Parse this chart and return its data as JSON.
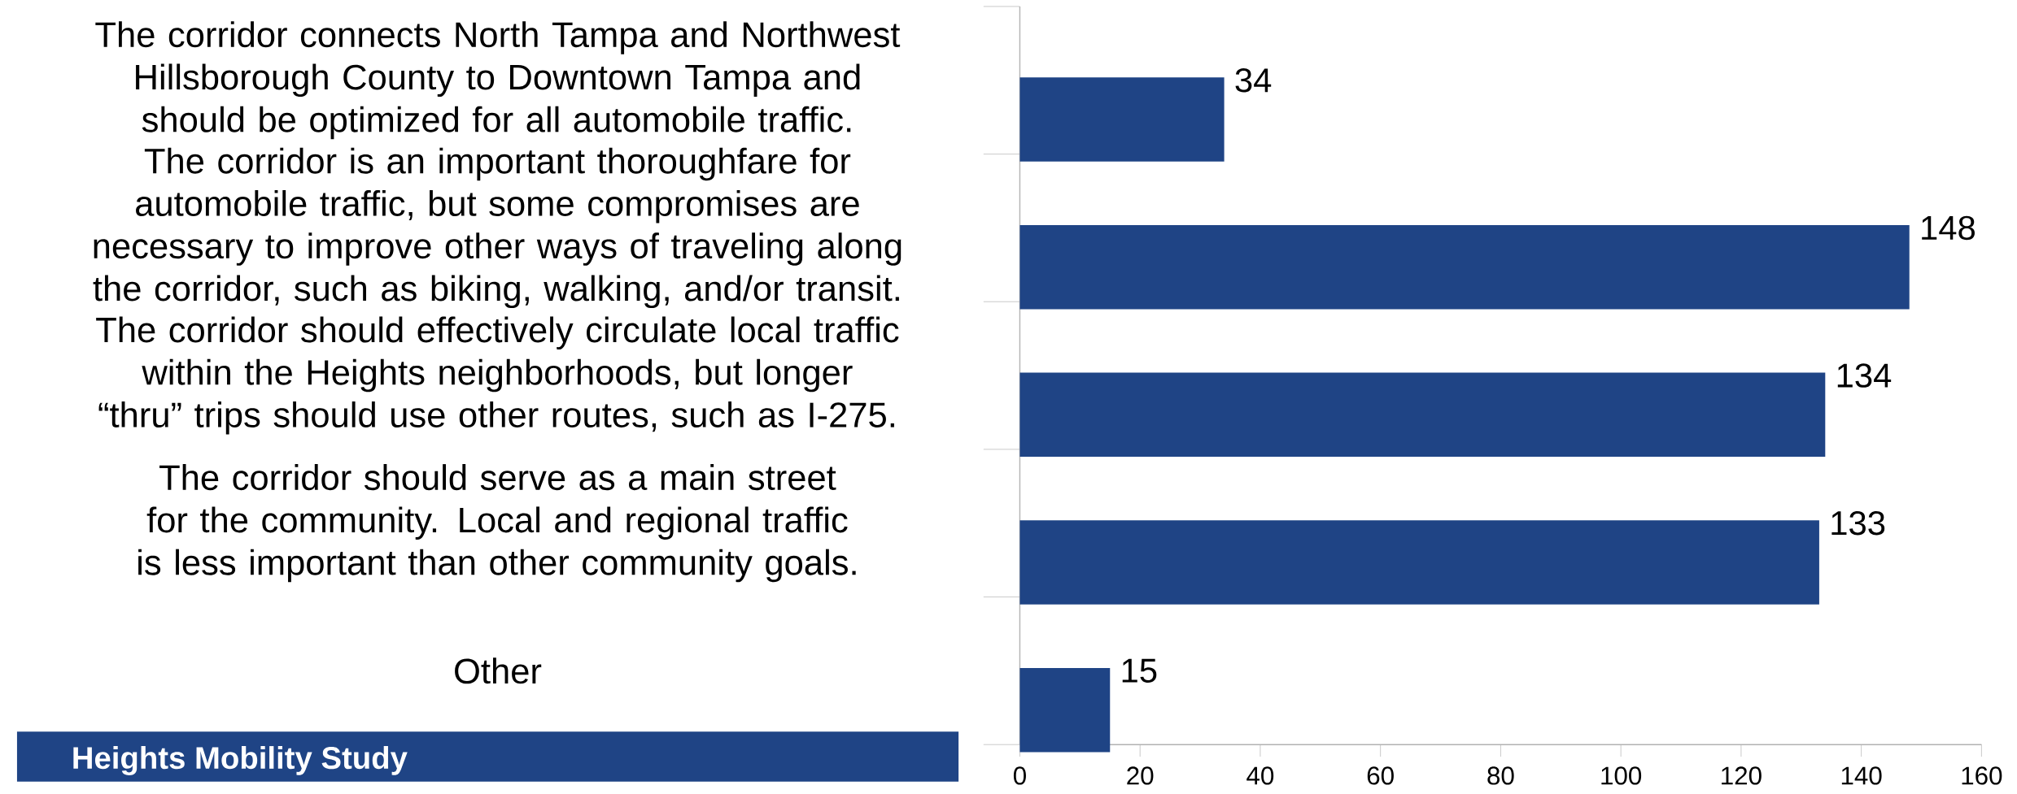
{
  "chart_data": {
    "type": "bar",
    "orientation": "horizontal",
    "categories": [
      "The corridor connects North Tampa and Northwest Hillsborough County to Downtown Tampa and should be optimized for all automobile traffic.",
      "The corridor is an important thoroughfare for automobile traffic, but some compromises are necessary to improve other ways of traveling along the corridor, such as biking, walking, and/or transit.",
      "The corridor should effectively circulate local traffic within the Heights neighborhoods, but longer “thru” trips should use other routes, such as I-275.",
      "The corridor should serve as a main street for the community. Local and regional traffic is less important than other community goals.",
      "Other"
    ],
    "values": [
      34,
      148,
      134,
      133,
      15
    ],
    "color": "#1f4485",
    "xlim": [
      0,
      160
    ],
    "xticks": [
      0,
      20,
      40,
      60,
      80,
      100,
      120,
      140,
      160
    ],
    "data_labels": true,
    "annotations": [
      "Heights Mobility Study"
    ]
  }
}
